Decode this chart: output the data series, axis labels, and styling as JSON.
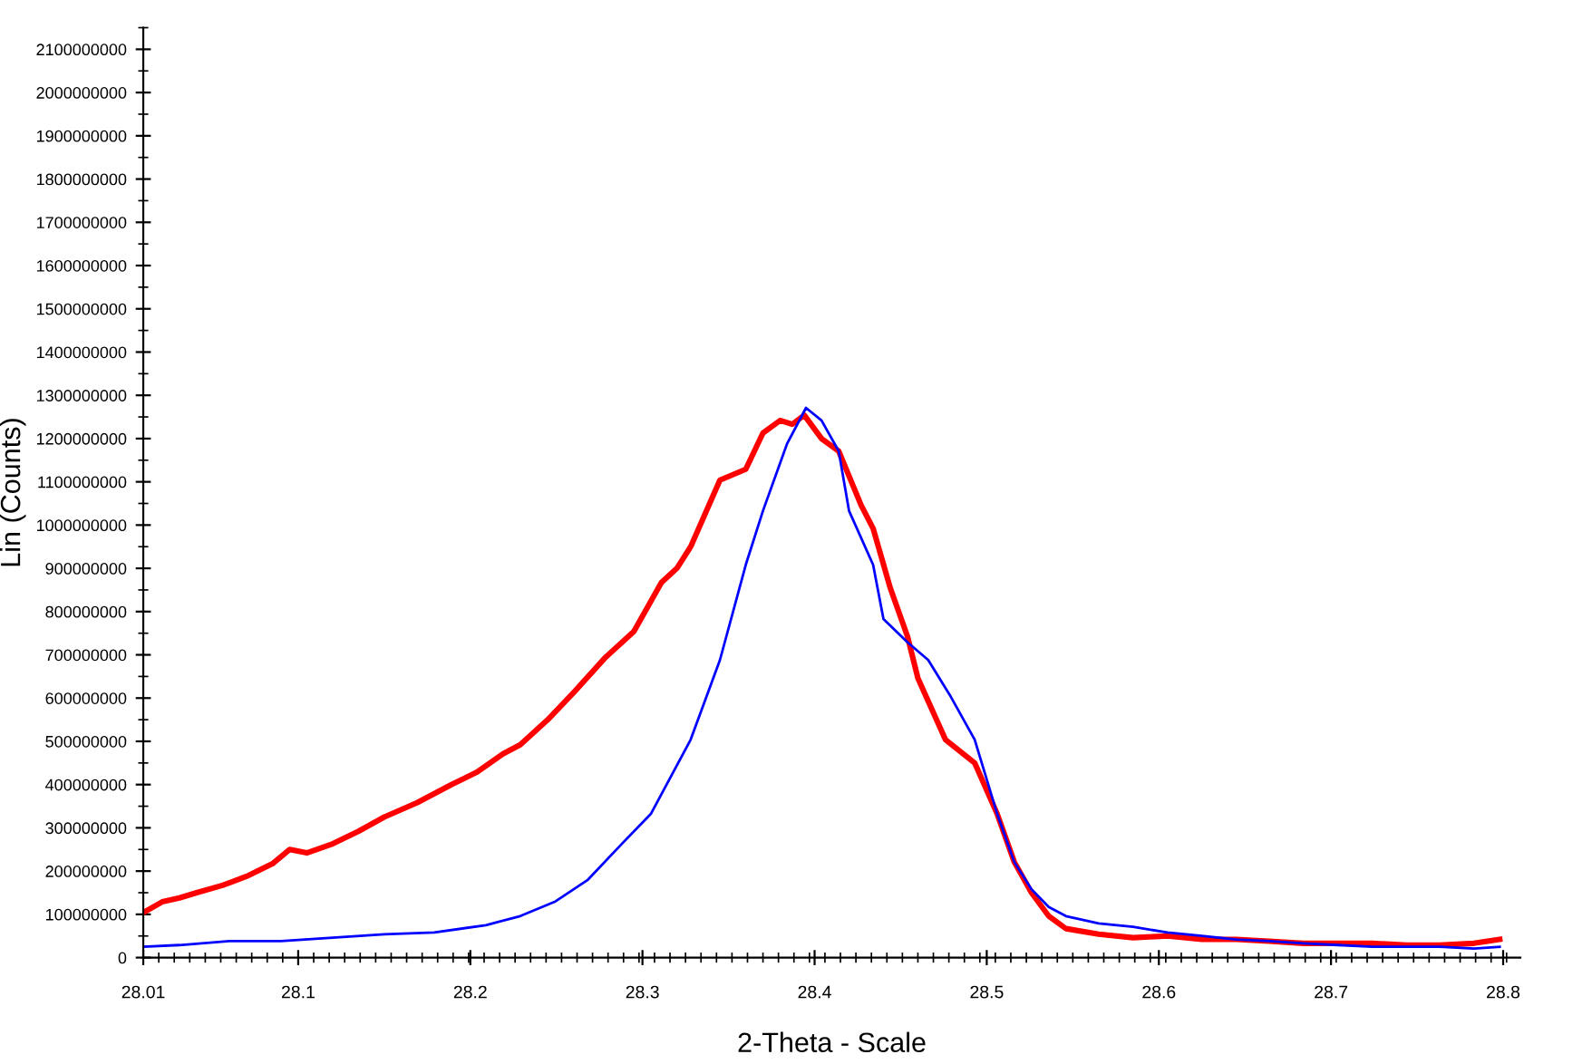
{
  "chart_data": {
    "type": "line",
    "xlabel": "2-Theta - Scale",
    "ylabel": "Lin (Counts)",
    "xlim": [
      28.01,
      28.81
    ],
    "xticks": [
      28.01,
      28.1,
      28.2,
      28.3,
      28.4,
      28.5,
      28.6,
      28.7,
      28.8
    ],
    "ylim": [
      0,
      2150000000
    ],
    "yticks": [
      0,
      100000000,
      200000000,
      300000000,
      400000000,
      500000000,
      600000000,
      700000000,
      800000000,
      900000000,
      1000000000,
      1100000000,
      1200000000,
      1300000000,
      1400000000,
      1500000000,
      1600000000,
      1700000000,
      1800000000,
      1900000000,
      2000000000,
      2100000000
    ],
    "grid": false,
    "legend": false,
    "marker": "none",
    "line_style": "solid",
    "series": [
      {
        "color": "#ff0000",
        "x": [
          28.01,
          28.021,
          28.031,
          28.041,
          28.056,
          28.07,
          28.085,
          28.095,
          28.105,
          28.12,
          28.135,
          28.15,
          28.169,
          28.189,
          28.204,
          28.219,
          28.229,
          28.245,
          28.261,
          28.278,
          28.295,
          28.311,
          28.32,
          28.328,
          28.345,
          28.36,
          28.37,
          28.38,
          28.387,
          28.394,
          28.404,
          28.414,
          28.427,
          28.434,
          28.444,
          28.454,
          28.46,
          28.476,
          28.493,
          28.506,
          28.516,
          28.526,
          28.536,
          28.546,
          28.565,
          28.585,
          28.605,
          28.625,
          28.645,
          28.664,
          28.684,
          28.704,
          28.724,
          28.744,
          28.763,
          28.783,
          28.798
        ],
        "values": [
          104000000,
          129000000,
          138000000,
          150000000,
          167000000,
          188000000,
          217000000,
          250000000,
          242000000,
          263000000,
          292000000,
          325000000,
          358000000,
          400000000,
          429000000,
          471000000,
          492000000,
          550000000,
          617000000,
          692000000,
          754000000,
          867000000,
          900000000,
          950000000,
          1104000000,
          1129000000,
          1213000000,
          1242000000,
          1233000000,
          1254000000,
          1200000000,
          1171000000,
          1046000000,
          992000000,
          854000000,
          742000000,
          646000000,
          504000000,
          450000000,
          333000000,
          221000000,
          150000000,
          96000000,
          67000000,
          54000000,
          46000000,
          50000000,
          42000000,
          42000000,
          38000000,
          33000000,
          33000000,
          33000000,
          29000000,
          29000000,
          33000000,
          42000000
        ]
      },
      {
        "color": "#0000ff",
        "x": [
          28.01,
          28.031,
          28.06,
          28.09,
          28.12,
          28.15,
          28.179,
          28.209,
          28.229,
          28.249,
          28.268,
          28.288,
          28.305,
          28.328,
          28.345,
          28.36,
          28.37,
          28.384,
          28.395,
          28.404,
          28.414,
          28.42,
          28.434,
          28.44,
          28.454,
          28.466,
          28.479,
          28.493,
          28.506,
          28.516,
          28.526,
          28.536,
          28.546,
          28.565,
          28.585,
          28.605,
          28.625,
          28.645,
          28.664,
          28.684,
          28.704,
          28.724,
          28.744,
          28.763,
          28.783,
          28.798
        ],
        "values": [
          25000000,
          29000000,
          38000000,
          38000000,
          46000000,
          54000000,
          58000000,
          75000000,
          96000000,
          129000000,
          179000000,
          263000000,
          333000000,
          504000000,
          688000000,
          908000000,
          1033000000,
          1188000000,
          1271000000,
          1242000000,
          1171000000,
          1033000000,
          908000000,
          783000000,
          729000000,
          688000000,
          604000000,
          504000000,
          333000000,
          221000000,
          158000000,
          117000000,
          96000000,
          79000000,
          71000000,
          58000000,
          50000000,
          42000000,
          38000000,
          33000000,
          29000000,
          25000000,
          25000000,
          25000000,
          21000000,
          25000000
        ]
      }
    ]
  }
}
